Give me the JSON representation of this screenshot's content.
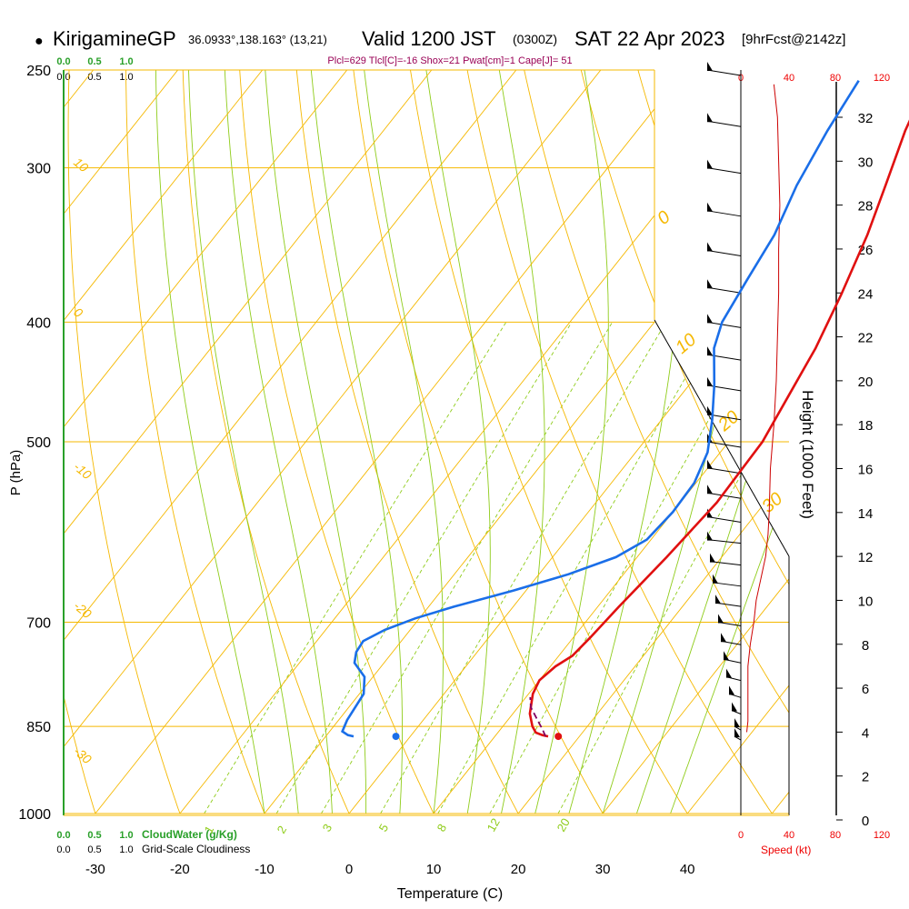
{
  "header": {
    "bullet": "●",
    "station": "KirigamineGP",
    "coords": "36.0933°,138.163° (13,21)",
    "valid_prefix": "Valid 1200 JST",
    "valid_z": "(0300Z)",
    "valid_date": "SAT 22 Apr 2023",
    "forecast": "[9hrFcst@2142z]"
  },
  "indices": "Plcl=629 Tlcl[C]=-16 Shox=21 Pwat[cm]=1 Cape[J]= 51",
  "scales": {
    "cloudwater_ticks": [
      "0.0",
      "0.5",
      "1.0"
    ],
    "cloudiness_ticks": [
      "0.0",
      "0.5",
      "1.0"
    ],
    "cloudwater_label": "CloudWater (g/Kg)",
    "cloudiness_label": "Grid-Scale Cloudiness",
    "speed_ticks": [
      "0",
      "40",
      "80",
      "120"
    ],
    "speed_label": "Speed (kt)"
  },
  "colors": {
    "isotherm": "#f5b800",
    "dry_adiabat": "#f5b800",
    "moist_adiabat": "#8fcc1a",
    "mixing_ratio": "#8fcc1a",
    "temperature": "#e01010",
    "dewpoint": "#1a6ee8",
    "parcel": "#800060",
    "speed": "#cc0000",
    "cloudwater": "#2aa02a",
    "indices": "#990055"
  },
  "chart_data": {
    "type": "skew-t",
    "xlabel": "Temperature (C)",
    "ylabel": "P (hPa)",
    "right_label": "Height (1000 Feet)",
    "x_ticks": [
      -30,
      -20,
      -10,
      0,
      10,
      20,
      30,
      40
    ],
    "p_ticks": [
      250,
      300,
      400,
      500,
      700,
      850,
      1000
    ],
    "height_ticks": [
      0,
      2,
      4,
      6,
      8,
      10,
      12,
      14,
      16,
      18,
      20,
      22,
      24,
      26,
      28,
      30,
      32
    ],
    "isotherm_labels": [
      "10",
      "0",
      "-10",
      "-20",
      "-30"
    ],
    "dry_adiabat_labels": [
      "0",
      "10",
      "20",
      "30"
    ],
    "mixing_ratio_labels": [
      "1",
      "2",
      "3",
      "5",
      "8",
      "12",
      "20"
    ],
    "temperature": [
      {
        "p": 866,
        "t": 16.3
      },
      {
        "p": 864,
        "t": 15.5
      },
      {
        "p": 860,
        "t": 14.5
      },
      {
        "p": 850,
        "t": 13.5
      },
      {
        "p": 830,
        "t": 12.0
      },
      {
        "p": 800,
        "t": 10.5
      },
      {
        "p": 780,
        "t": 10.0
      },
      {
        "p": 760,
        "t": 10.6
      },
      {
        "p": 745,
        "t": 11.6
      },
      {
        "p": 720,
        "t": 12.0
      },
      {
        "p": 680,
        "t": 12.5
      },
      {
        "p": 620,
        "t": 13.5
      },
      {
        "p": 560,
        "t": 14.3
      },
      {
        "p": 500,
        "t": 14.0
      },
      {
        "p": 460,
        "t": 12.8
      },
      {
        "p": 420,
        "t": 11.5
      },
      {
        "p": 380,
        "t": 9.5
      },
      {
        "p": 340,
        "t": 7.0
      },
      {
        "p": 310,
        "t": 4.5
      },
      {
        "p": 280,
        "t": 1.7
      },
      {
        "p": 265,
        "t": 0.5
      },
      {
        "p": 255,
        "t": 0.0
      }
    ],
    "dewpoint": [
      {
        "p": 866,
        "t": -6.7
      },
      {
        "p": 864,
        "t": -7.5
      },
      {
        "p": 858,
        "t": -8.5
      },
      {
        "p": 840,
        "t": -9.0
      },
      {
        "p": 800,
        "t": -9.5
      },
      {
        "p": 775,
        "t": -11.0
      },
      {
        "p": 755,
        "t": -13.5
      },
      {
        "p": 740,
        "t": -14.3
      },
      {
        "p": 725,
        "t": -14.5
      },
      {
        "p": 710,
        "t": -13.0
      },
      {
        "p": 695,
        "t": -10.5
      },
      {
        "p": 680,
        "t": -7.0
      },
      {
        "p": 660,
        "t": -1.5
      },
      {
        "p": 640,
        "t": 3.5
      },
      {
        "p": 620,
        "t": 7.5
      },
      {
        "p": 600,
        "t": 9.5
      },
      {
        "p": 570,
        "t": 10.0
      },
      {
        "p": 540,
        "t": 9.8
      },
      {
        "p": 510,
        "t": 8.5
      },
      {
        "p": 480,
        "t": 6.0
      },
      {
        "p": 450,
        "t": 3.0
      },
      {
        "p": 420,
        "t": -0.5
      },
      {
        "p": 400,
        "t": -2.0
      },
      {
        "p": 370,
        "t": -3.0
      },
      {
        "p": 340,
        "t": -4.0
      },
      {
        "p": 310,
        "t": -6.0
      },
      {
        "p": 280,
        "t": -7.5
      },
      {
        "p": 255,
        "t": -8.5
      }
    ],
    "parcel": [
      {
        "p": 866,
        "t": 16.0
      },
      {
        "p": 855,
        "t": 15.0
      },
      {
        "p": 840,
        "t": 13.5
      },
      {
        "p": 820,
        "t": 11.5
      },
      {
        "p": 805,
        "t": 10.5
      }
    ],
    "surface_temperature": {
      "p": 866,
      "t": 17.5
    },
    "surface_dewpoint": {
      "p": 866,
      "t": -1.7
    },
    "wind_speed_kt": [
      {
        "h": 4.0,
        "s": 5
      },
      {
        "h": 4.5,
        "s": 6
      },
      {
        "h": 5.5,
        "s": 6
      },
      {
        "h": 7.0,
        "s": 6
      },
      {
        "h": 8.0,
        "s": 8
      },
      {
        "h": 9.0,
        "s": 11
      },
      {
        "h": 10.0,
        "s": 13
      },
      {
        "h": 11.0,
        "s": 17
      },
      {
        "h": 12.0,
        "s": 21
      },
      {
        "h": 13.0,
        "s": 23
      },
      {
        "h": 14.0,
        "s": 24
      },
      {
        "h": 16.0,
        "s": 25
      },
      {
        "h": 18.0,
        "s": 28
      },
      {
        "h": 20.0,
        "s": 30
      },
      {
        "h": 22.0,
        "s": 31
      },
      {
        "h": 24.0,
        "s": 32
      },
      {
        "h": 26.0,
        "s": 32
      },
      {
        "h": 28.0,
        "s": 33
      },
      {
        "h": 30.0,
        "s": 32
      },
      {
        "h": 32.0,
        "s": 31
      },
      {
        "h": 33.5,
        "s": 28
      }
    ],
    "wind_barb_pressures": [
      250,
      275,
      300,
      325,
      350,
      375,
      400,
      425,
      450,
      475,
      500,
      525,
      550,
      575,
      600,
      625,
      650,
      675,
      700,
      725,
      750,
      775,
      800,
      825,
      850,
      866
    ]
  }
}
